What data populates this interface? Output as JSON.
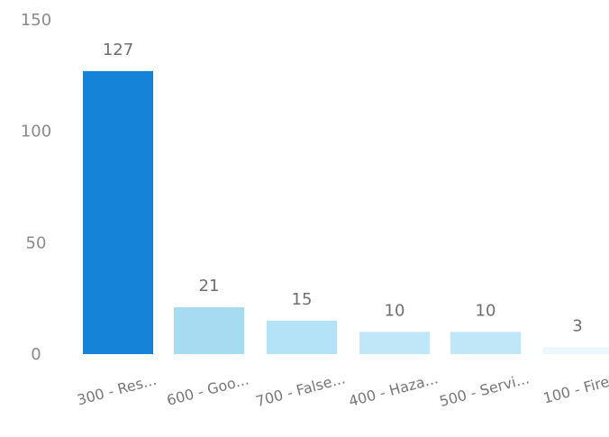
{
  "chart_data": {
    "type": "bar",
    "categories": [
      "300 - Res...",
      "600 - Goo...",
      "700 - False...",
      "400 - Haza...",
      "500 - Servi...",
      "100 - Fire"
    ],
    "values": [
      127,
      21,
      15,
      10,
      10,
      3
    ],
    "data_labels": [
      "127",
      "21",
      "15",
      "10",
      "10",
      "3"
    ],
    "title": "",
    "xlabel": "",
    "ylabel": "",
    "ylim": [
      0,
      150
    ],
    "yticks": [
      {
        "value": 0,
        "label": "0"
      },
      {
        "value": 50,
        "label": "50"
      },
      {
        "value": 100,
        "label": "100"
      },
      {
        "value": 150,
        "label": "150"
      }
    ],
    "grid": false,
    "legend": "none",
    "bar_colors": [
      "#1483d8",
      "#a6dbf2",
      "#b4e2f6",
      "#bfe7f8",
      "#bfe7f8",
      "#eaf7fd"
    ]
  }
}
